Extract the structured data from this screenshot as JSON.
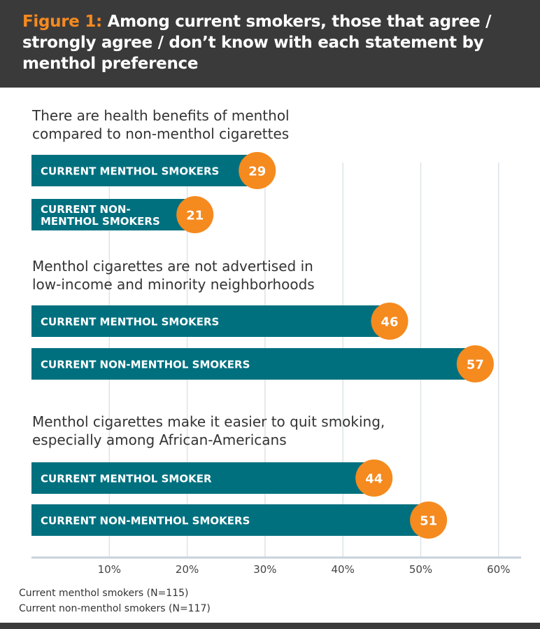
{
  "title": {
    "figure_label": "Figure 1:",
    "text": "Among current smokers, those that agree / strongly agree / don’t know with each statement by menthol preference"
  },
  "colors": {
    "header": "#3b3a3b",
    "bar": "#00707f",
    "value_circle": "#f58a1f",
    "accent": "#f58a1f"
  },
  "chart_data": {
    "type": "bar",
    "orientation": "horizontal",
    "xlim": [
      0,
      60
    ],
    "x_ticks": [
      "10%",
      "20%",
      "30%",
      "40%",
      "50%",
      "60%"
    ],
    "grid": true,
    "groups": [
      {
        "question": [
          "There are health benefits of menthol",
          "compared to non-menthol cigarettes"
        ],
        "bars": [
          {
            "label": [
              "CURRENT MENTHOL SMOKERS"
            ],
            "value": 29
          },
          {
            "label": [
              "CURRENT NON-",
              "MENTHOL SMOKERS"
            ],
            "value": 21
          }
        ]
      },
      {
        "question": [
          "Menthol cigarettes are not advertised in",
          "low-income and minority neighborhoods"
        ],
        "bars": [
          {
            "label": [
              "CURRENT MENTHOL SMOKERS"
            ],
            "value": 46
          },
          {
            "label": [
              "CURRENT NON-MENTHOL SMOKERS"
            ],
            "value": 57
          }
        ]
      },
      {
        "question": [
          "Menthol cigarettes make it easier to quit smoking,",
          "especially among African-Americans"
        ],
        "bars": [
          {
            "label": [
              "CURRENT MENTHOL SMOKER"
            ],
            "value": 44
          },
          {
            "label": [
              "CURRENT NON-MENTHOL SMOKERS"
            ],
            "value": 51
          }
        ]
      }
    ]
  },
  "notes": [
    "Current menthol smokers (N=115)",
    "Current non-menthol smokers (N=117)"
  ]
}
